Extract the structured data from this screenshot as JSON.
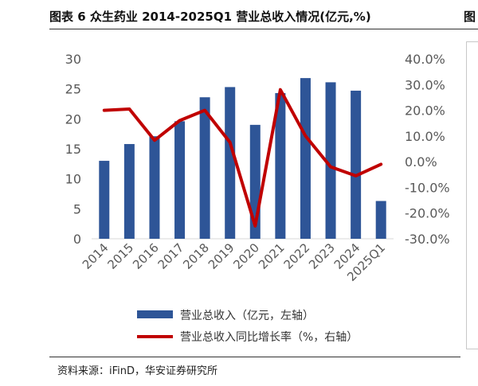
{
  "figure": {
    "title": "图表 6 众生药业 2014-2025Q1 营业总收入情况(亿元,%)",
    "side_title_fragment": "图",
    "source": "资料来源：iFinD，华安证券研究所"
  },
  "colors": {
    "bar": "#2E5597",
    "line": "#C00000",
    "tick_text": "#595959"
  },
  "chart_data": {
    "type": "bar",
    "categories": [
      "2014",
      "2015",
      "2016",
      "2017",
      "2018",
      "2019",
      "2020",
      "2021",
      "2022",
      "2023",
      "2024",
      "2025Q1"
    ],
    "series": [
      {
        "name": "营业总收入（亿元，左轴）",
        "type": "bar",
        "axis": "left",
        "values": [
          13.0,
          15.8,
          17.1,
          19.6,
          23.6,
          25.3,
          19.0,
          24.3,
          26.8,
          26.1,
          24.7,
          6.3
        ]
      },
      {
        "name": "营业总收入同比增长率（%，右轴）",
        "type": "line",
        "axis": "right",
        "values": [
          20.0,
          20.5,
          8.3,
          16.0,
          20.0,
          7.5,
          -25.0,
          28.0,
          10.0,
          -2.0,
          -5.5,
          -1.0
        ]
      }
    ],
    "ylim_left": [
      0,
      30
    ],
    "yticks_left": [
      "0",
      "5",
      "10",
      "15",
      "20",
      "25",
      "30"
    ],
    "ylim_right": [
      -30,
      40
    ],
    "yticks_right": [
      "-30.0%",
      "-20.0%",
      "-10.0%",
      "0.0%",
      "10.0%",
      "20.0%",
      "30.0%",
      "40.0%"
    ],
    "grid": false,
    "legend_position": "bottom"
  }
}
